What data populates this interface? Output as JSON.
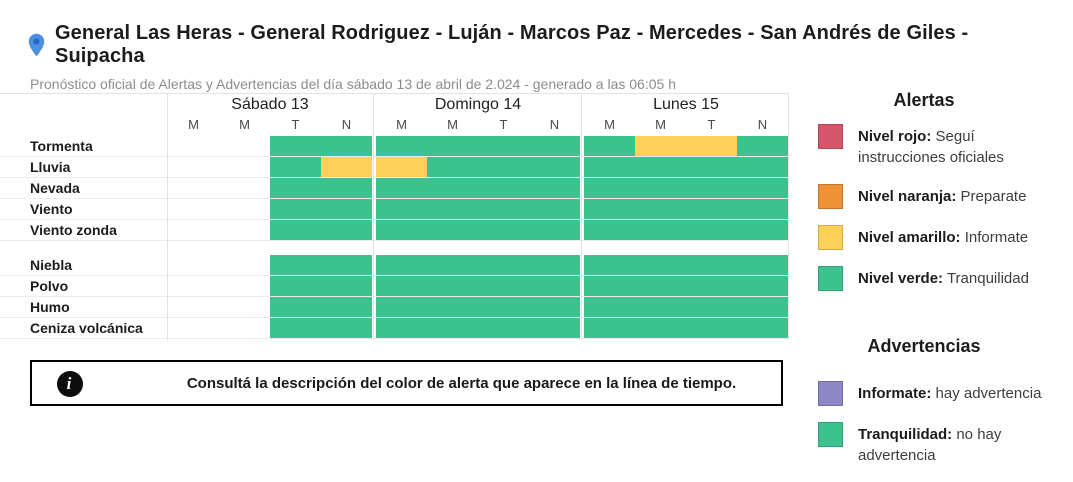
{
  "header": {
    "title": "General Las Heras - General Rodriguez - Luján - Marcos Paz - Mercedes - San Andrés de Giles - Suipacha",
    "subtitle": "Pronóstico oficial de Alertas y Advertencias del día sábado 13 de abril de 2.024 - generado a las 06:05 h"
  },
  "colors": {
    "green": "#3cc28f",
    "yellow": "#fbd158",
    "red": "#d6576b",
    "orange": "#ef9136",
    "purple": "#8d87c6",
    "pin_blue": "#4a90e2",
    "pin_blue_dark": "#2368c4"
  },
  "forecast_table": {
    "days": [
      {
        "label": "Sábado 13",
        "periods": [
          "M",
          "M",
          "T",
          "N"
        ]
      },
      {
        "label": "Domingo 14",
        "periods": [
          "M",
          "M",
          "T",
          "N"
        ]
      },
      {
        "label": "Lunes 15",
        "periods": [
          "M",
          "M",
          "T",
          "N"
        ]
      }
    ],
    "row_groups": [
      {
        "rows": [
          {
            "label": "Tormenta",
            "cells": [
              "none",
              "none",
              "green",
              "green",
              "green",
              "green",
              "green",
              "green",
              "green",
              "yellow",
              "yellow",
              "green"
            ]
          },
          {
            "label": "Lluvia",
            "cells": [
              "none",
              "none",
              "green",
              "yellow",
              "yellow",
              "green",
              "green",
              "green",
              "green",
              "green",
              "green",
              "green"
            ]
          },
          {
            "label": "Nevada",
            "cells": [
              "none",
              "none",
              "green",
              "green",
              "green",
              "green",
              "green",
              "green",
              "green",
              "green",
              "green",
              "green"
            ]
          },
          {
            "label": "Viento",
            "cells": [
              "none",
              "none",
              "green",
              "green",
              "green",
              "green",
              "green",
              "green",
              "green",
              "green",
              "green",
              "green"
            ]
          },
          {
            "label": "Viento zonda",
            "cells": [
              "none",
              "none",
              "green",
              "green",
              "green",
              "green",
              "green",
              "green",
              "green",
              "green",
              "green",
              "green"
            ]
          }
        ]
      },
      {
        "rows": [
          {
            "label": "Niebla",
            "cells": [
              "none",
              "none",
              "green",
              "green",
              "green",
              "green",
              "green",
              "green",
              "green",
              "green",
              "green",
              "green"
            ]
          },
          {
            "label": "Polvo",
            "cells": [
              "none",
              "none",
              "green",
              "green",
              "green",
              "green",
              "green",
              "green",
              "green",
              "green",
              "green",
              "green"
            ]
          },
          {
            "label": "Humo",
            "cells": [
              "none",
              "none",
              "green",
              "green",
              "green",
              "green",
              "green",
              "green",
              "green",
              "green",
              "green",
              "green"
            ]
          },
          {
            "label": "Ceniza volcánica",
            "cells": [
              "none",
              "none",
              "green",
              "green",
              "green",
              "green",
              "green",
              "green",
              "green",
              "green",
              "green",
              "green"
            ]
          }
        ]
      }
    ]
  },
  "info_box": {
    "icon_glyph": "i",
    "text": "Consultá la descripción del color de alerta que aparece en la línea de tiempo."
  },
  "legend": {
    "alerts": {
      "title": "Alertas",
      "items": [
        {
          "color": "#d6576b",
          "name": "Nivel rojo:",
          "text": "Seguí instrucciones oficiales"
        },
        {
          "color": "#ef9136",
          "name": "Nivel naranja:",
          "text": "Preparate"
        },
        {
          "color": "#fbd158",
          "name": "Nivel amarillo:",
          "text": "Informate"
        },
        {
          "color": "#3cc28f",
          "name": "Nivel verde:",
          "text": "Tranquilidad"
        }
      ]
    },
    "warnings": {
      "title": "Advertencias",
      "items": [
        {
          "color": "#8d87c6",
          "name": "Informate:",
          "text": "hay advertencia"
        },
        {
          "color": "#3cc28f",
          "name": "Tranquilidad:",
          "text": "no hay advertencia"
        }
      ]
    }
  }
}
